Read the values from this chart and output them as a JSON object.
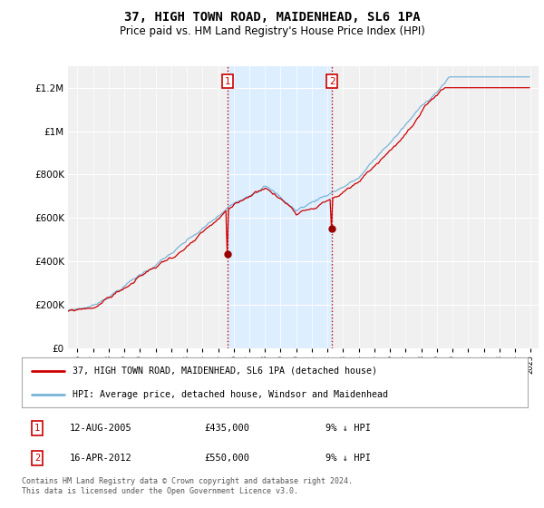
{
  "title": "37, HIGH TOWN ROAD, MAIDENHEAD, SL6 1PA",
  "subtitle": "Price paid vs. HM Land Registry's House Price Index (HPI)",
  "legend_line1": "37, HIGH TOWN ROAD, MAIDENHEAD, SL6 1PA (detached house)",
  "legend_line2": "HPI: Average price, detached house, Windsor and Maidenhead",
  "transaction1_date": "12-AUG-2005",
  "transaction1_price": "£435,000",
  "transaction1_hpi": "9% ↓ HPI",
  "transaction2_date": "16-APR-2012",
  "transaction2_price": "£550,000",
  "transaction2_hpi": "9% ↓ HPI",
  "footnote": "Contains HM Land Registry data © Crown copyright and database right 2024.\nThis data is licensed under the Open Government Licence v3.0.",
  "hpi_color": "#7ab4d8",
  "price_color": "#cc0000",
  "marker1_year": 2005.62,
  "marker2_year": 2012.29,
  "marker1_value": 435000,
  "marker2_value": 550000,
  "shade_color": "#ddeeff",
  "ylim": [
    0,
    1300000
  ],
  "xlim_start": 1995.5,
  "xlim_end": 2025.5,
  "background_color": "#ffffff",
  "plot_bg_color": "#f0f0f0"
}
